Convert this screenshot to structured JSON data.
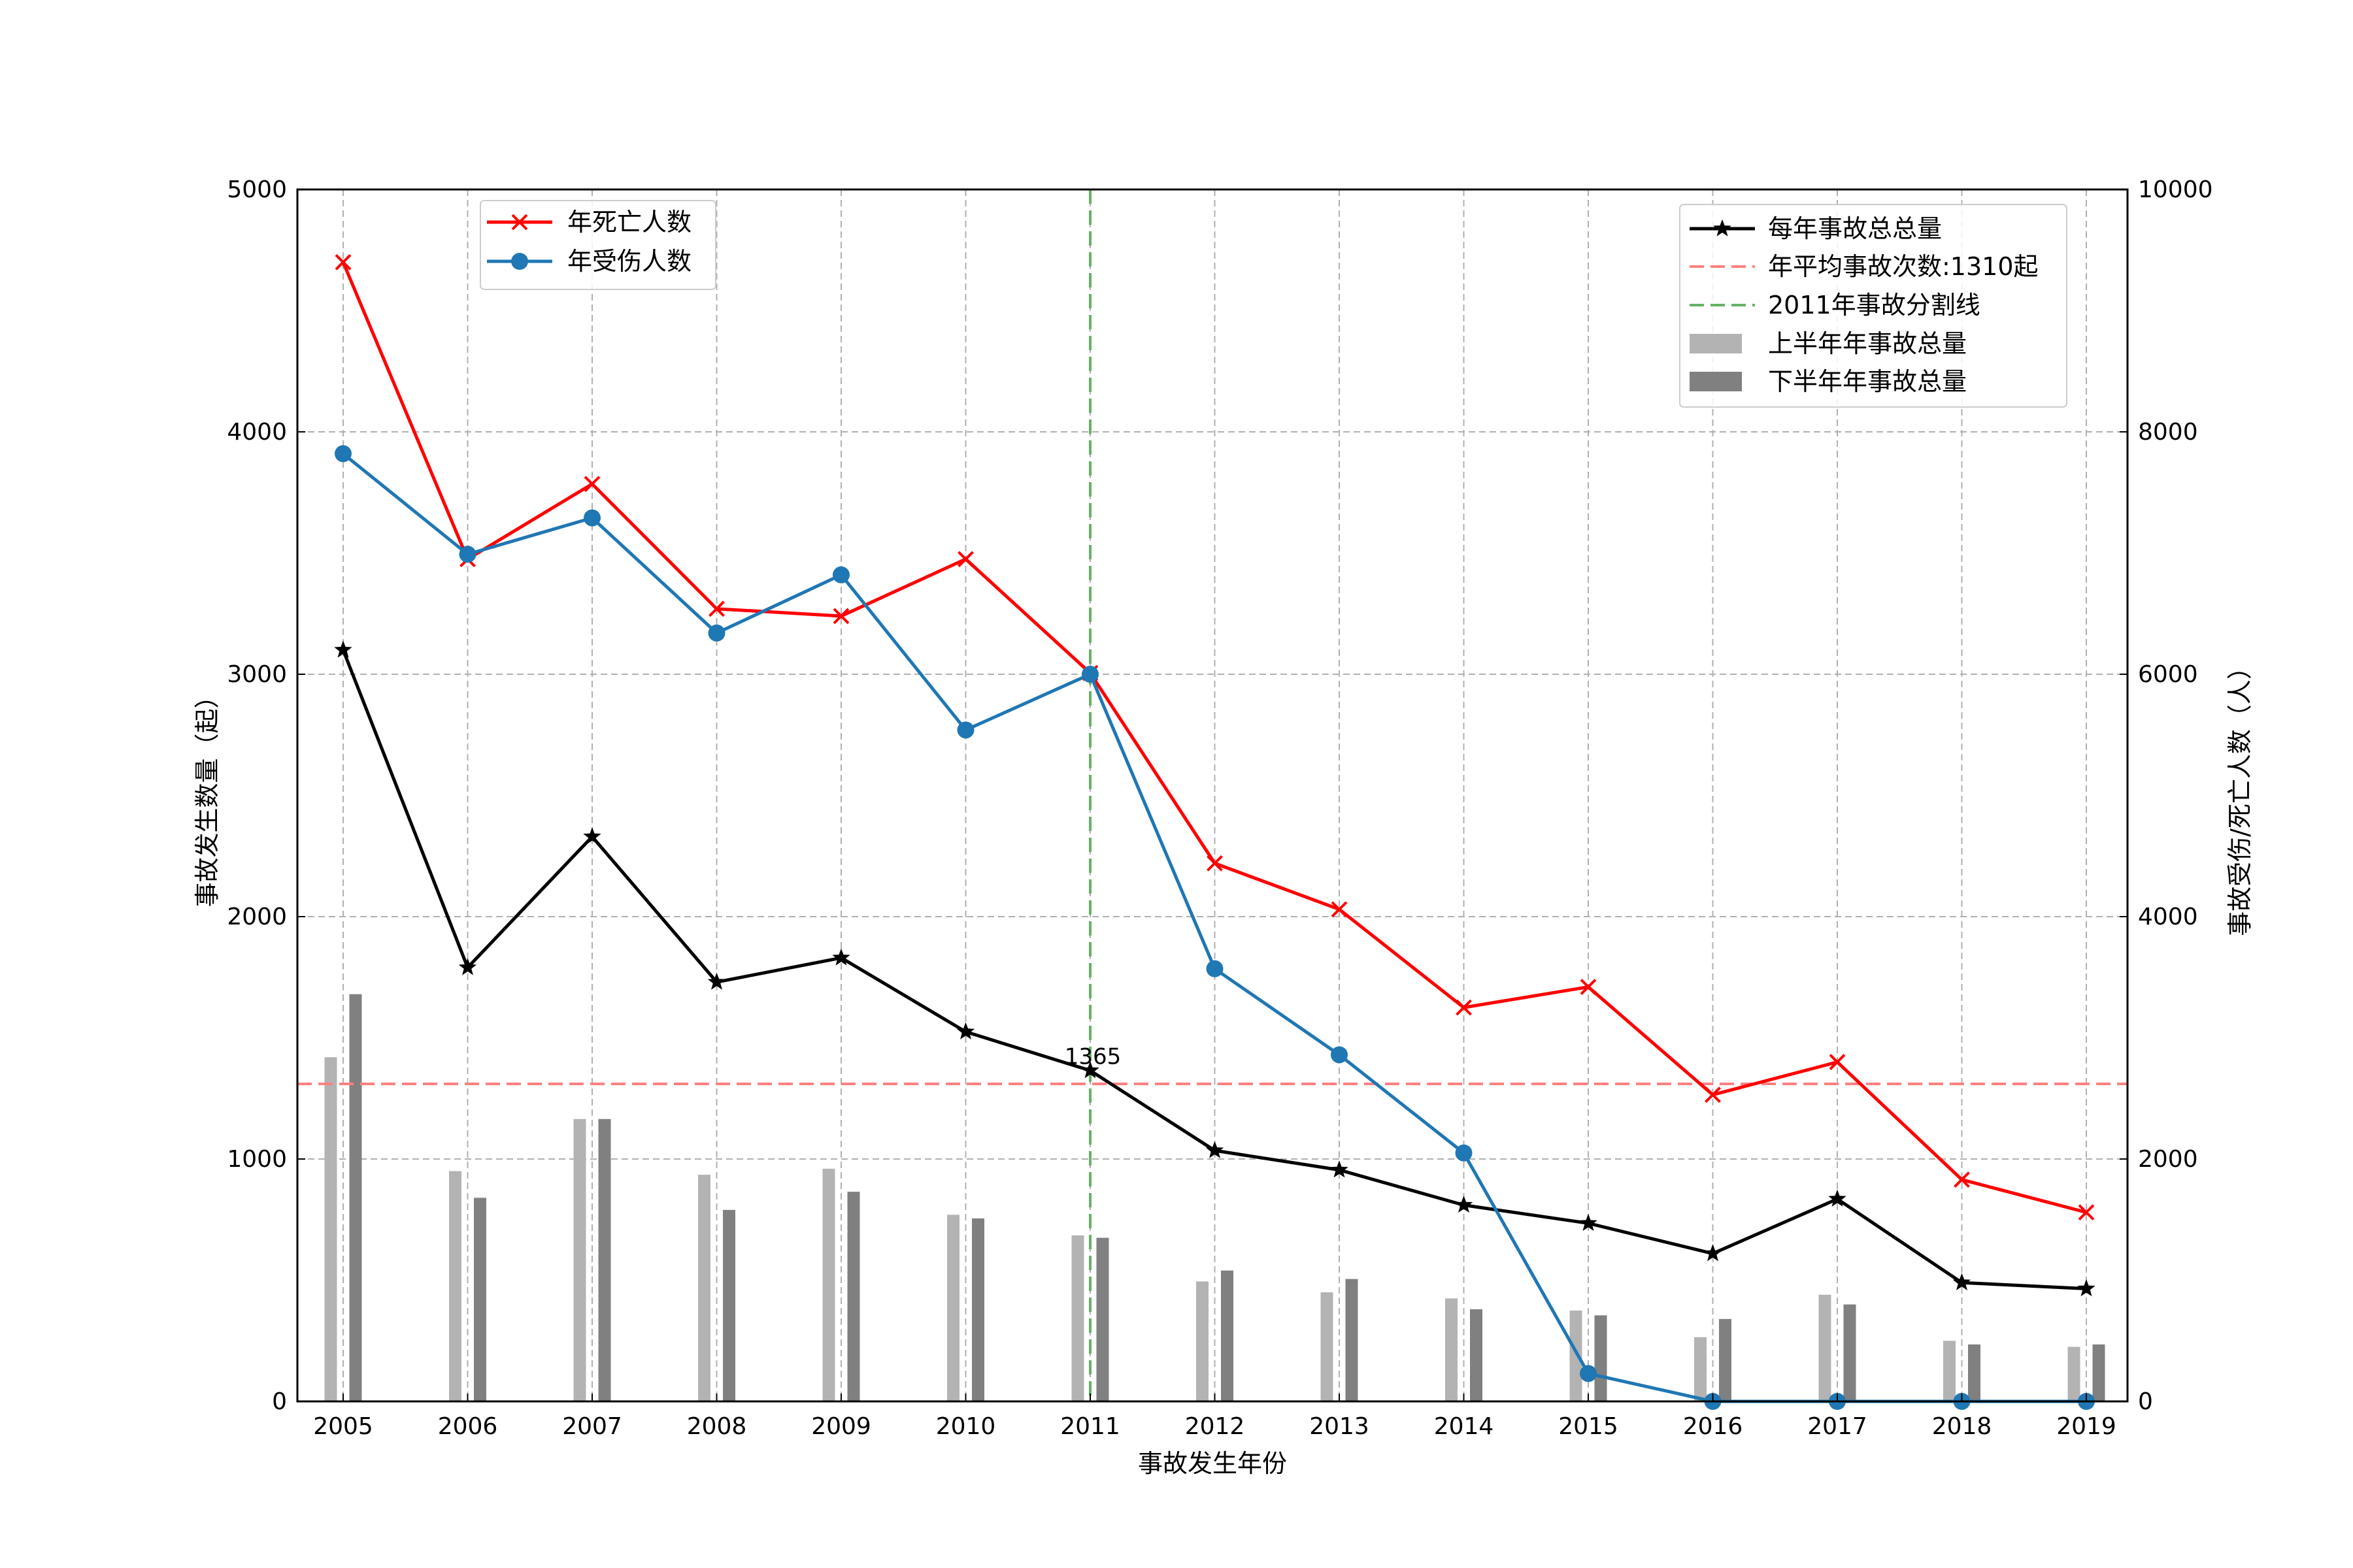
{
  "chart_data": {
    "type": "line",
    "title": "",
    "xlabel": "事故发生年份",
    "ylabel_left": "事故发生数量（起）",
    "ylabel_right": "事故受伤/死亡人数（人）",
    "ylim_left": [
      0,
      5000
    ],
    "ylim_right": [
      0,
      10000
    ],
    "yticks_left": [
      0,
      1000,
      2000,
      3000,
      4000,
      5000
    ],
    "yticks_right": [
      0,
      2000,
      4000,
      6000,
      8000,
      10000
    ],
    "grid": true,
    "categories": [
      "2005",
      "2006",
      "2007",
      "2008",
      "2009",
      "2010",
      "2011",
      "2012",
      "2013",
      "2014",
      "2015",
      "2016",
      "2017",
      "2018",
      "2019"
    ],
    "bars_left_axis": [
      {
        "name": "上半年年事故总量",
        "color": "#b3b3b3",
        "values": [
          1420,
          950,
          1165,
          935,
          960,
          770,
          685,
          495,
          450,
          425,
          375,
          265,
          440,
          250,
          225
        ]
      },
      {
        "name": "下半年年事故总量",
        "color": "#808080",
        "values": [
          1680,
          840,
          1165,
          790,
          865,
          755,
          675,
          540,
          505,
          380,
          355,
          340,
          400,
          235,
          235
        ]
      }
    ],
    "lines_left_axis": [
      {
        "name": "每年事故总总量",
        "color": "#000000",
        "marker": "star",
        "values": [
          3100,
          1790,
          2330,
          1730,
          1830,
          1525,
          1365,
          1035,
          955,
          810,
          735,
          610,
          835,
          490,
          465
        ]
      }
    ],
    "lines_right_axis": [
      {
        "name": "年死亡人数",
        "color": "#ff0000",
        "marker": "x",
        "values": [
          9400,
          6950,
          7570,
          6540,
          6480,
          6950,
          6010,
          4440,
          4060,
          3250,
          3420,
          2530,
          2800,
          1830,
          1560
        ]
      },
      {
        "name": "年受伤人数",
        "color": "#1f77b4",
        "marker": "circle",
        "values": [
          7820,
          6990,
          7290,
          6340,
          6820,
          5540,
          6000,
          3570,
          2860,
          2050,
          230,
          0,
          0,
          0,
          0
        ]
      }
    ],
    "reference_lines": [
      {
        "name": "年平均事故次数:1310起",
        "orientation": "horizontal",
        "axis": "left",
        "value": 1310,
        "color": "#ff8080",
        "style": "dashed"
      },
      {
        "name": "2011年事故分割线",
        "orientation": "vertical",
        "category": "2011",
        "color": "#66b266",
        "style": "dashed"
      }
    ],
    "annotations": [
      {
        "text": "1365",
        "category": "2011",
        "value": 1365
      }
    ],
    "legends": [
      {
        "position": "top-left",
        "entries": [
          "年死亡人数",
          "年受伤人数"
        ]
      },
      {
        "position": "top-right",
        "entries": [
          "每年事故总总量",
          "年平均事故次数:1310起",
          "2011年事故分割线",
          "上半年年事故总量",
          "下半年年事故总量"
        ]
      }
    ]
  }
}
